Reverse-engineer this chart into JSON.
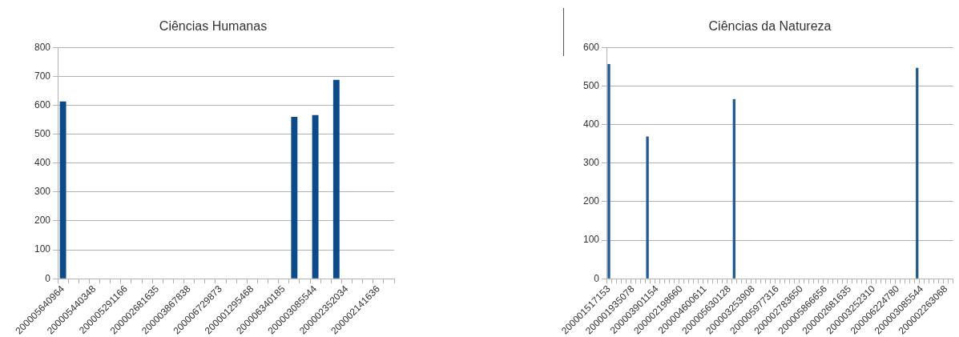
{
  "chart_data": [
    {
      "type": "bar",
      "title": "Ciências Humanas",
      "categories": [
        "200005640964",
        null,
        null,
        "200005440348",
        null,
        null,
        "200005291166",
        null,
        null,
        "200002681635",
        null,
        null,
        "200003867838",
        null,
        null,
        "200006729873",
        null,
        null,
        "200001295468",
        null,
        null,
        "200006340185",
        null,
        null,
        "200003085544",
        null,
        null,
        "200002352034",
        null,
        null,
        "200002141636",
        null
      ],
      "values": [
        613,
        null,
        null,
        null,
        null,
        null,
        null,
        null,
        null,
        null,
        null,
        null,
        null,
        null,
        null,
        null,
        null,
        null,
        null,
        null,
        null,
        null,
        560,
        null,
        566,
        null,
        688,
        null,
        null,
        null,
        null,
        null
      ],
      "color": "#0b4a8b",
      "ylim": [
        0,
        800
      ],
      "yticks": [
        0,
        100,
        200,
        300,
        400,
        500,
        600,
        700,
        800
      ],
      "grid": "y"
    },
    {
      "type": "bar",
      "title": "Ciências da Natureza",
      "categories": [
        "200001517153",
        null,
        null,
        null,
        null,
        "200001935078",
        null,
        null,
        null,
        null,
        "200003901154",
        null,
        null,
        null,
        null,
        "200002198660",
        null,
        null,
        null,
        null,
        "200004600611",
        null,
        null,
        null,
        null,
        "200005630128",
        null,
        null,
        null,
        null,
        "200003253908",
        null,
        null,
        null,
        null,
        "200005977316",
        null,
        null,
        null,
        null,
        "200002783650",
        null,
        null,
        null,
        null,
        "200005866656",
        null,
        null,
        null,
        null,
        "200002681635",
        null,
        null,
        null,
        null,
        "200003252310",
        null,
        null,
        null,
        null,
        "200006224780",
        null,
        null,
        null,
        null,
        "200003085544",
        null,
        null,
        null,
        null,
        "200002263068",
        null
      ],
      "values": [
        557,
        null,
        null,
        null,
        null,
        null,
        null,
        null,
        369,
        null,
        null,
        null,
        null,
        null,
        null,
        null,
        null,
        null,
        null,
        null,
        null,
        null,
        null,
        null,
        null,
        null,
        466,
        null,
        null,
        null,
        null,
        null,
        null,
        null,
        null,
        null,
        null,
        null,
        null,
        null,
        null,
        null,
        null,
        null,
        null,
        null,
        null,
        null,
        null,
        null,
        null,
        null,
        null,
        null,
        null,
        null,
        null,
        null,
        null,
        null,
        null,
        null,
        null,
        null,
        547,
        null,
        null,
        null,
        null,
        null,
        null,
        null
      ],
      "color": "#1f5a96",
      "ylim": [
        0,
        600
      ],
      "yticks": [
        0,
        100,
        200,
        300,
        400,
        500,
        600
      ],
      "grid": "y"
    }
  ]
}
